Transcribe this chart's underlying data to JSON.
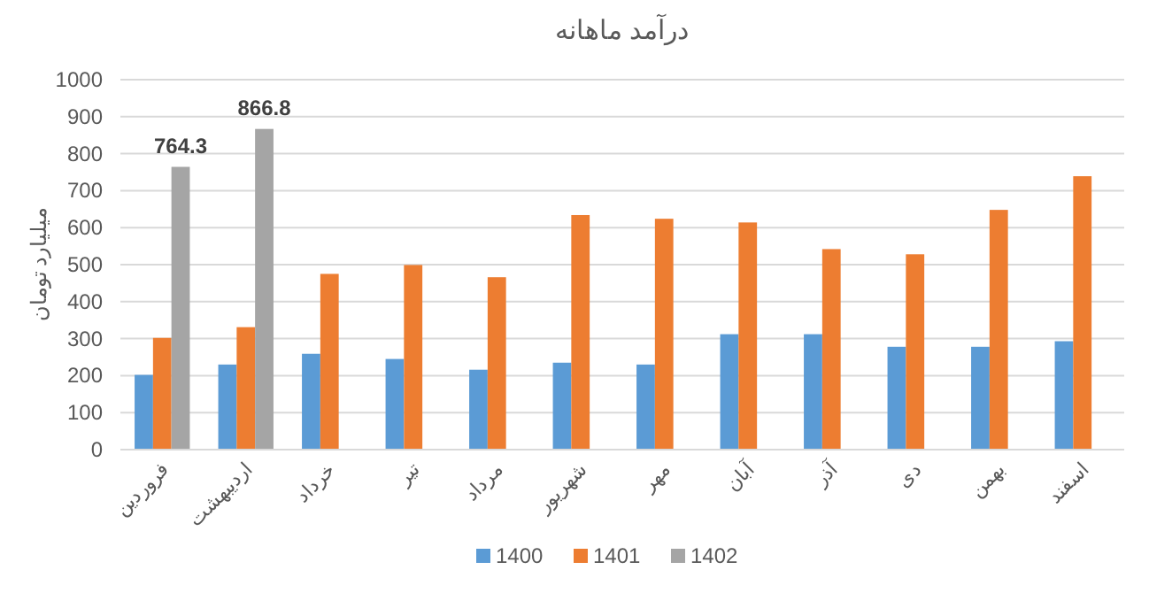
{
  "chart_data": {
    "type": "bar",
    "title": "درآمد ماهانه",
    "ylabel": "میلیارد تومان",
    "categories": [
      "فروردین",
      "اردیبهشت",
      "خرداد",
      "تیر",
      "مرداد",
      "شهریور",
      "مهر",
      "آبان",
      "آذر",
      "دی",
      "بهمن",
      "اسفند"
    ],
    "series": [
      {
        "name": "1400",
        "color": "#5b9bd5",
        "values": [
          202,
          230,
          259,
          245,
          216,
          235,
          230,
          312,
          312,
          278,
          278,
          293
        ]
      },
      {
        "name": "1401",
        "color": "#ed7d31",
        "values": [
          302,
          331,
          475,
          499,
          466,
          634,
          624,
          614,
          542,
          528,
          648,
          739
        ]
      },
      {
        "name": "1402",
        "color": "#a5a5a5",
        "values": [
          764.3,
          866.8,
          null,
          null,
          null,
          null,
          null,
          null,
          null,
          null,
          null,
          null
        ],
        "value_labels": [
          "764.3",
          "866.8",
          null,
          null,
          null,
          null,
          null,
          null,
          null,
          null,
          null,
          null
        ]
      }
    ],
    "ylim": [
      0,
      1000
    ],
    "yticks": [
      0,
      100,
      200,
      300,
      400,
      500,
      600,
      700,
      800,
      900,
      1000
    ],
    "grid": "y",
    "legend": "bottom"
  }
}
